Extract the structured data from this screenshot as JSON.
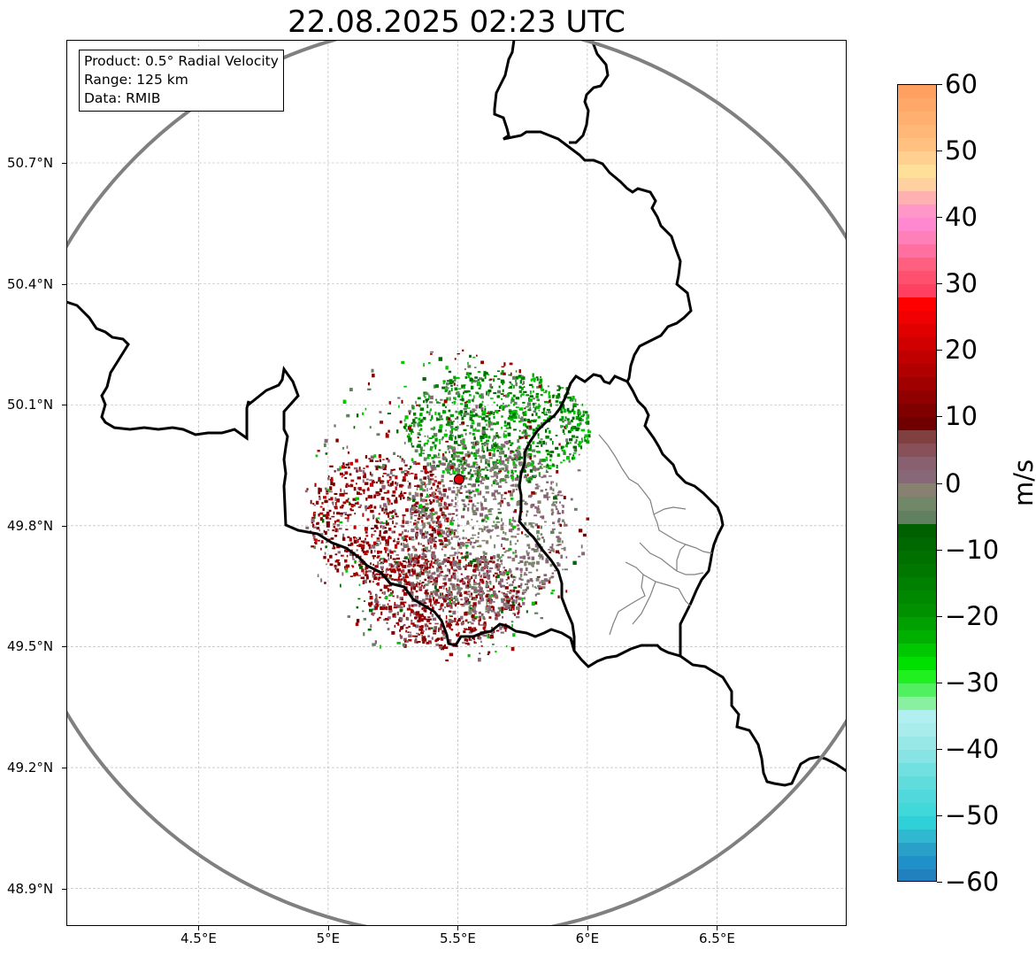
{
  "title": "22.08.2025 02:23 UTC",
  "info": {
    "product": "Product: 0.5° Radial Velocity",
    "range": "Range: 125 km",
    "data": "Data: RMIB"
  },
  "axes": {
    "lon_range": [
      4.02,
      7.0
    ],
    "lat_range": [
      48.8,
      51.0
    ],
    "x_ticks": [
      {
        "value": 4.5,
        "label": "4.5°E"
      },
      {
        "value": 5.0,
        "label": "5°E"
      },
      {
        "value": 5.5,
        "label": "5.5°E"
      },
      {
        "value": 6.0,
        "label": "6°E"
      },
      {
        "value": 6.5,
        "label": "6.5°E"
      }
    ],
    "y_ticks": [
      {
        "value": 50.7,
        "label": "50.7°N"
      },
      {
        "value": 50.4,
        "label": "50.4°N"
      },
      {
        "value": 50.1,
        "label": "50.1°N"
      },
      {
        "value": 49.8,
        "label": "49.8°N"
      },
      {
        "value": 49.5,
        "label": "49.5°N"
      },
      {
        "value": 49.2,
        "label": "49.2°N"
      },
      {
        "value": 48.9,
        "label": "48.9°N"
      }
    ],
    "grid": true
  },
  "radar": {
    "lon": 5.505,
    "lat": 49.915,
    "range_km": 125,
    "marker_color": "#e00000",
    "ring_color": "#808080"
  },
  "colorbar": {
    "unit": "m/s",
    "min": -60,
    "max": 60,
    "ticks": [
      {
        "value": 60,
        "label": "60"
      },
      {
        "value": 50,
        "label": "50"
      },
      {
        "value": 40,
        "label": "40"
      },
      {
        "value": 30,
        "label": "30"
      },
      {
        "value": 20,
        "label": "20"
      },
      {
        "value": 10,
        "label": "10"
      },
      {
        "value": 0,
        "label": "0"
      },
      {
        "value": -10,
        "label": "−10"
      },
      {
        "value": -20,
        "label": "−20"
      },
      {
        "value": -30,
        "label": "−30"
      },
      {
        "value": -40,
        "label": "−40"
      },
      {
        "value": -50,
        "label": "−50"
      },
      {
        "value": -60,
        "label": "−60"
      }
    ],
    "bands": [
      {
        "from": 58,
        "to": 60,
        "color": "#ffa060"
      },
      {
        "from": 56,
        "to": 58,
        "color": "#ffa868"
      },
      {
        "from": 54,
        "to": 56,
        "color": "#ffb070"
      },
      {
        "from": 52,
        "to": 54,
        "color": "#ffb878"
      },
      {
        "from": 50,
        "to": 52,
        "color": "#ffc080"
      },
      {
        "from": 48,
        "to": 50,
        "color": "#ffd090"
      },
      {
        "from": 46,
        "to": 48,
        "color": "#ffe098"
      },
      {
        "from": 44,
        "to": 46,
        "color": "#ffd0a0"
      },
      {
        "from": 42,
        "to": 44,
        "color": "#ffb0b0"
      },
      {
        "from": 40,
        "to": 42,
        "color": "#ff98c8"
      },
      {
        "from": 38,
        "to": 40,
        "color": "#ff88d0"
      },
      {
        "from": 36,
        "to": 38,
        "color": "#ff80b8"
      },
      {
        "from": 34,
        "to": 36,
        "color": "#ff70a0"
      },
      {
        "from": 32,
        "to": 34,
        "color": "#ff6080"
      },
      {
        "from": 30,
        "to": 32,
        "color": "#ff5070"
      },
      {
        "from": 28,
        "to": 30,
        "color": "#ff4060"
      },
      {
        "from": 26,
        "to": 28,
        "color": "#ff0000"
      },
      {
        "from": 24,
        "to": 26,
        "color": "#f00000"
      },
      {
        "from": 22,
        "to": 24,
        "color": "#e00000"
      },
      {
        "from": 20,
        "to": 22,
        "color": "#d00000"
      },
      {
        "from": 18,
        "to": 20,
        "color": "#c00000"
      },
      {
        "from": 16,
        "to": 18,
        "color": "#b00000"
      },
      {
        "from": 14,
        "to": 16,
        "color": "#a00000"
      },
      {
        "from": 12,
        "to": 14,
        "color": "#900000"
      },
      {
        "from": 10,
        "to": 12,
        "color": "#800000"
      },
      {
        "from": 8,
        "to": 10,
        "color": "#700000"
      },
      {
        "from": 6,
        "to": 8,
        "color": "#804040"
      },
      {
        "from": 4,
        "to": 6,
        "color": "#885058"
      },
      {
        "from": 2,
        "to": 4,
        "color": "#886070"
      },
      {
        "from": 0,
        "to": 2,
        "color": "#886878"
      },
      {
        "from": -2,
        "to": 0,
        "color": "#888070"
      },
      {
        "from": -4,
        "to": -2,
        "color": "#708868"
      },
      {
        "from": -6,
        "to": -4,
        "color": "#608060"
      },
      {
        "from": -8,
        "to": -6,
        "color": "#006000"
      },
      {
        "from": -10,
        "to": -8,
        "color": "#006800"
      },
      {
        "from": -12,
        "to": -10,
        "color": "#007000"
      },
      {
        "from": -14,
        "to": -12,
        "color": "#007800"
      },
      {
        "from": -16,
        "to": -14,
        "color": "#008000"
      },
      {
        "from": -18,
        "to": -16,
        "color": "#008800"
      },
      {
        "from": -20,
        "to": -18,
        "color": "#009000"
      },
      {
        "from": -22,
        "to": -20,
        "color": "#00a000"
      },
      {
        "from": -24,
        "to": -22,
        "color": "#00b000"
      },
      {
        "from": -26,
        "to": -24,
        "color": "#00c800"
      },
      {
        "from": -28,
        "to": -26,
        "color": "#00e000"
      },
      {
        "from": -30,
        "to": -28,
        "color": "#20f020"
      },
      {
        "from": -32,
        "to": -30,
        "color": "#50f060"
      },
      {
        "from": -34,
        "to": -32,
        "color": "#88f0a0"
      },
      {
        "from": -36,
        "to": -34,
        "color": "#b0f0f0"
      },
      {
        "from": -38,
        "to": -36,
        "color": "#a8ecec"
      },
      {
        "from": -40,
        "to": -38,
        "color": "#98e8e8"
      },
      {
        "from": -42,
        "to": -40,
        "color": "#88e4e4"
      },
      {
        "from": -44,
        "to": -42,
        "color": "#70e0e0"
      },
      {
        "from": -46,
        "to": -44,
        "color": "#60dcdc"
      },
      {
        "from": -48,
        "to": -46,
        "color": "#50d8dc"
      },
      {
        "from": -50,
        "to": -48,
        "color": "#40d8d8"
      },
      {
        "from": -52,
        "to": -50,
        "color": "#30d0d8"
      },
      {
        "from": -54,
        "to": -52,
        "color": "#30b8d0"
      },
      {
        "from": -56,
        "to": -54,
        "color": "#28a0c8"
      },
      {
        "from": -58,
        "to": -56,
        "color": "#2090c8"
      },
      {
        "from": -60,
        "to": -58,
        "color": "#2080c0"
      }
    ]
  },
  "echo_regions": [
    {
      "name": "inbound",
      "lon": 5.65,
      "lat": 50.05,
      "rlon": 0.36,
      "rlat": 0.14,
      "colors": [
        "#008000",
        "#00a000",
        "#006800",
        "#00c800",
        "#608060"
      ],
      "count": 900
    },
    {
      "name": "outbound-west",
      "lon": 5.2,
      "lat": 49.82,
      "rlon": 0.28,
      "rlat": 0.16,
      "colors": [
        "#800000",
        "#a00000",
        "#700000",
        "#c00000",
        "#886878"
      ],
      "count": 700
    },
    {
      "name": "outbound-south",
      "lon": 5.45,
      "lat": 49.62,
      "rlon": 0.3,
      "rlat": 0.12,
      "colors": [
        "#800000",
        "#900000",
        "#a00000",
        "#886878",
        "#885058"
      ],
      "count": 700
    },
    {
      "name": "near-zero",
      "lon": 5.6,
      "lat": 49.8,
      "rlon": 0.32,
      "rlat": 0.22,
      "colors": [
        "#888070",
        "#886878",
        "#708868",
        "#886070"
      ],
      "count": 900
    },
    {
      "name": "scatter",
      "lon": 5.45,
      "lat": 49.85,
      "rlon": 0.55,
      "rlat": 0.4,
      "colors": [
        "#608060",
        "#886878",
        "#a00000",
        "#00c800",
        "#800000",
        "#006800"
      ],
      "count": 500
    }
  ]
}
